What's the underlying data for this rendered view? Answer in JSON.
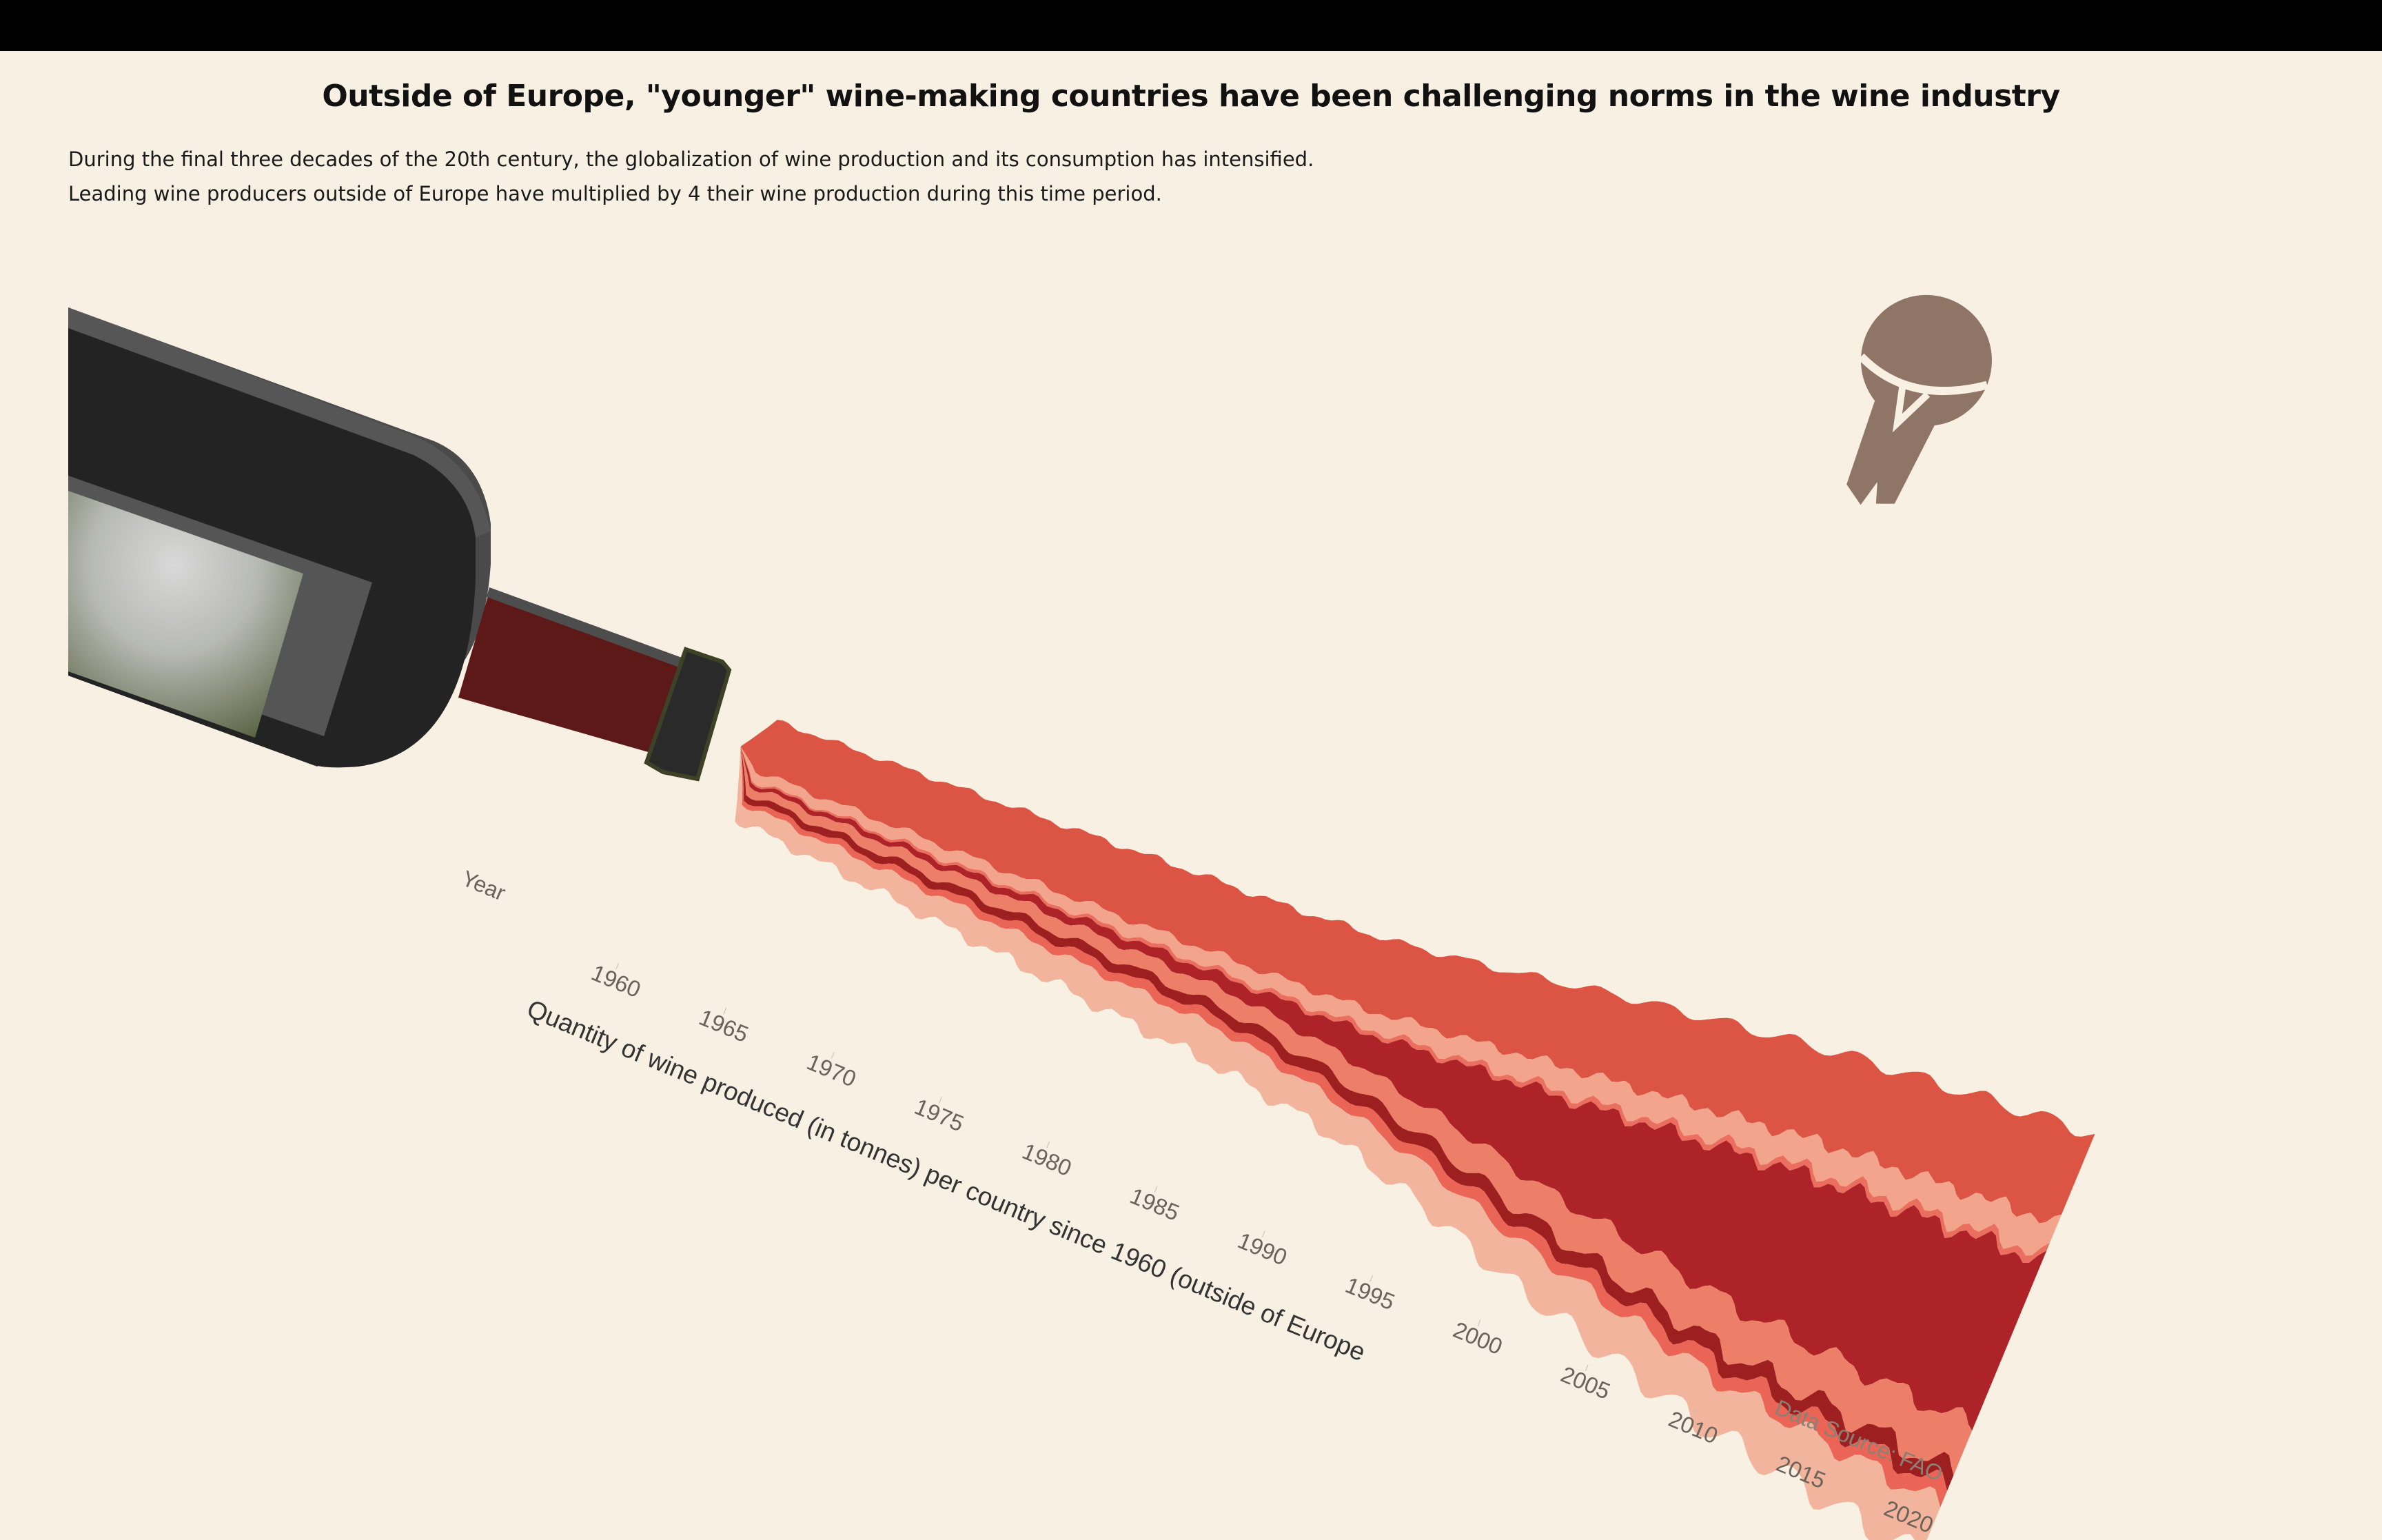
{
  "title": "Outside of Europe, \"younger\" wine-making countries have been challenging norms in the wine industry",
  "subtitle_lines": [
    "During the final three decades of the 20th century, the globalization of wine production and its consumption has intensified.",
    "Leading wine producers outside of Europe have multiplied by 4 their wine production during this time period."
  ],
  "source": "Data Source: FAO",
  "chart_data": {
    "type": "area",
    "stacked": true,
    "title": "Outside of Europe, \"younger\" wine-making countries have been challenging norms in the wine industry",
    "xlabel": "Year",
    "ylabel": "Quantity of wine produced (in tonnes) per country since 1960 (outside of Europe",
    "x_ticks": [
      "1960",
      "1965",
      "1970",
      "1975",
      "1980",
      "1985",
      "1990",
      "1995",
      "2000",
      "2005",
      "2010",
      "2015",
      "2020"
    ],
    "xlim": [
      1961,
      2021
    ],
    "legend": "none",
    "grid": false,
    "years": [
      1961,
      1965,
      1970,
      1975,
      1980,
      1985,
      1990,
      1995,
      2000,
      2005,
      2010,
      2015,
      2021
    ],
    "series": [
      {
        "color": "#f2b49c",
        "values": [
          0.18,
          0.2,
          0.24,
          0.28,
          0.33,
          0.36,
          0.32,
          0.35,
          0.4,
          0.45,
          0.48,
          0.52,
          0.58
        ]
      },
      {
        "color": "#ea6555",
        "values": [
          0.05,
          0.06,
          0.07,
          0.09,
          0.1,
          0.1,
          0.11,
          0.12,
          0.13,
          0.14,
          0.15,
          0.17,
          0.18
        ]
      },
      {
        "color": "#9e1f1f",
        "values": [
          0.06,
          0.07,
          0.08,
          0.09,
          0.1,
          0.11,
          0.12,
          0.13,
          0.14,
          0.15,
          0.16,
          0.17,
          0.18
        ]
      },
      {
        "color": "#ed7f69",
        "values": [
          0.08,
          0.1,
          0.12,
          0.14,
          0.16,
          0.18,
          0.22,
          0.28,
          0.34,
          0.4,
          0.45,
          0.48,
          0.52
        ]
      },
      {
        "color": "#ad2328",
        "values": [
          0.04,
          0.05,
          0.06,
          0.08,
          0.1,
          0.14,
          0.3,
          0.6,
          0.95,
          1.25,
          1.55,
          1.7,
          1.85
        ]
      },
      {
        "color": "#ea6f5e",
        "values": [
          0.02,
          0.02,
          0.03,
          0.03,
          0.04,
          0.04,
          0.05,
          0.05,
          0.06,
          0.06,
          0.07,
          0.07,
          0.08
        ]
      },
      {
        "color": "#f2a48c",
        "values": [
          0.1,
          0.11,
          0.12,
          0.13,
          0.14,
          0.16,
          0.18,
          0.22,
          0.26,
          0.28,
          0.3,
          0.32,
          0.35
        ]
      },
      {
        "color": "#dc5444",
        "values": [
          0.55,
          0.58,
          0.62,
          0.66,
          0.7,
          0.72,
          0.76,
          0.8,
          0.88,
          0.92,
          0.95,
          0.98,
          1.0
        ]
      }
    ]
  },
  "decorations": {
    "bottle_icon": "wine-bottle",
    "cork_icon": "cork"
  }
}
